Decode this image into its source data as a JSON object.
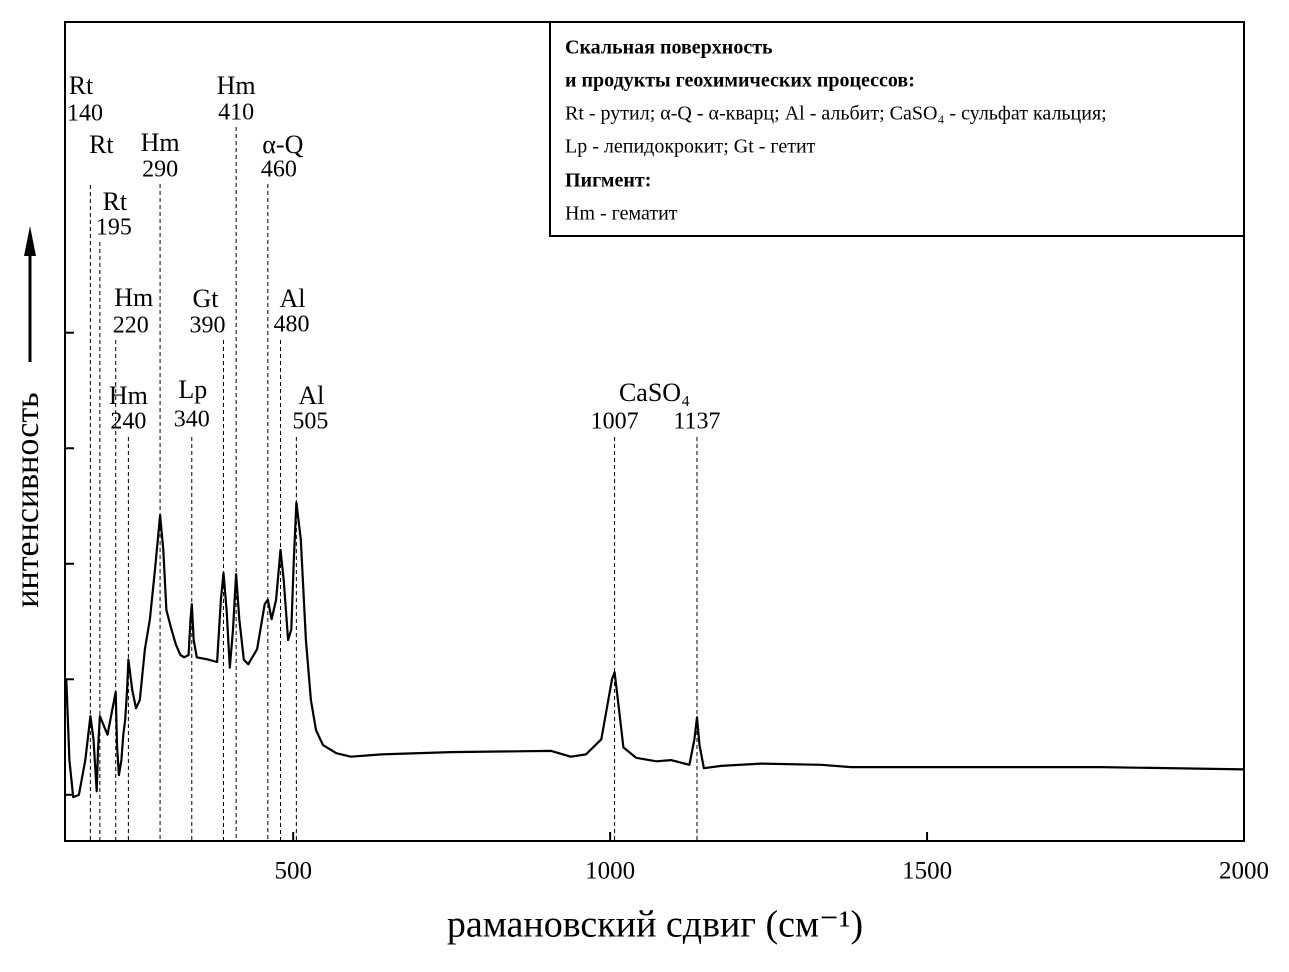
{
  "chart_data": {
    "type": "line",
    "x_label": "рамановский сдвиг (см⁻¹)",
    "y_label": "интенсивность",
    "xlim": [
      140,
      2000
    ],
    "xticks": [
      500,
      1000,
      1500,
      2000
    ],
    "ylim": [
      -0.4,
      6.69
    ],
    "yticks": [
      0,
      1,
      2,
      3,
      4
    ],
    "x": [
      142,
      147,
      153,
      162,
      172,
      180,
      185,
      190,
      192,
      195,
      207,
      220,
      222,
      225,
      229,
      232,
      235,
      238,
      240,
      246,
      252,
      258,
      266,
      274,
      282,
      290,
      295,
      300,
      308,
      315,
      322,
      328,
      335,
      338,
      340,
      343,
      348,
      366,
      380,
      386,
      390,
      395,
      400,
      405,
      410,
      415,
      422,
      429,
      443,
      455,
      460,
      466,
      473,
      480,
      485,
      492,
      497,
      501,
      505,
      512,
      520,
      528,
      536,
      547,
      568,
      591,
      639,
      749,
      907,
      938,
      962,
      986,
      1003,
      1007,
      1014,
      1021,
      1041,
      1073,
      1096,
      1125,
      1133,
      1137,
      1141,
      1148,
      1175,
      1238,
      1333,
      1380,
      1506,
      1774,
      2000
    ],
    "series": [
      {
        "color": "#000000",
        "values": [
          1.0,
          0.3,
          -0.02,
          0.0,
          0.3,
          0.68,
          0.48,
          0.03,
          0.39,
          0.68,
          0.52,
          0.89,
          0.43,
          0.17,
          0.3,
          0.52,
          0.65,
          0.91,
          1.17,
          0.91,
          0.75,
          0.82,
          1.26,
          1.52,
          1.95,
          2.42,
          2.12,
          1.6,
          1.43,
          1.3,
          1.21,
          1.19,
          1.21,
          1.52,
          1.65,
          1.34,
          1.19,
          1.17,
          1.15,
          1.69,
          1.92,
          1.6,
          1.1,
          1.43,
          1.91,
          1.52,
          1.17,
          1.13,
          1.26,
          1.65,
          1.69,
          1.52,
          1.69,
          2.12,
          1.86,
          1.34,
          1.43,
          2.03,
          2.53,
          2.21,
          1.34,
          0.82,
          0.56,
          0.43,
          0.36,
          0.33,
          0.35,
          0.37,
          0.38,
          0.33,
          0.35,
          0.48,
          1.0,
          1.06,
          0.74,
          0.41,
          0.32,
          0.29,
          0.3,
          0.26,
          0.48,
          0.67,
          0.43,
          0.23,
          0.25,
          0.27,
          0.26,
          0.24,
          0.24,
          0.24,
          0.22
        ]
      }
    ],
    "annotations": [
      {
        "label": "Rt",
        "x": 140
      },
      {
        "label": "Rt",
        "position": 180
      },
      {
        "label": "Rt",
        "x": 195
      },
      {
        "label": "Hm",
        "x": 220
      },
      {
        "label": "Hm",
        "x": 240
      },
      {
        "label": "Hm",
        "x": 290
      },
      {
        "label": "Lp",
        "x": 340
      },
      {
        "label": "Gt",
        "x": 390
      },
      {
        "label": "Hm",
        "x": 410
      },
      {
        "label": "α-Q",
        "x": 460
      },
      {
        "label": "Al",
        "x": 480
      },
      {
        "label": "Al",
        "x": 505
      },
      {
        "label": "CaSO₄",
        "x": 1007
      },
      {
        "x": 1137
      }
    ],
    "legend": {
      "title_lines": [
        "Скальная поверхность",
        "и продукты геохимических процессов:"
      ],
      "lines": [
        "Rt - рутил; α-Q - α-кварц; Al - альбит; CaSO₄ - сульфат кальция;",
        "Lp - лепидокрокит; Gt - гетит"
      ],
      "pigment_title": "Пигмент:",
      "pigment_lines": [
        "Hm - гематит"
      ]
    }
  }
}
